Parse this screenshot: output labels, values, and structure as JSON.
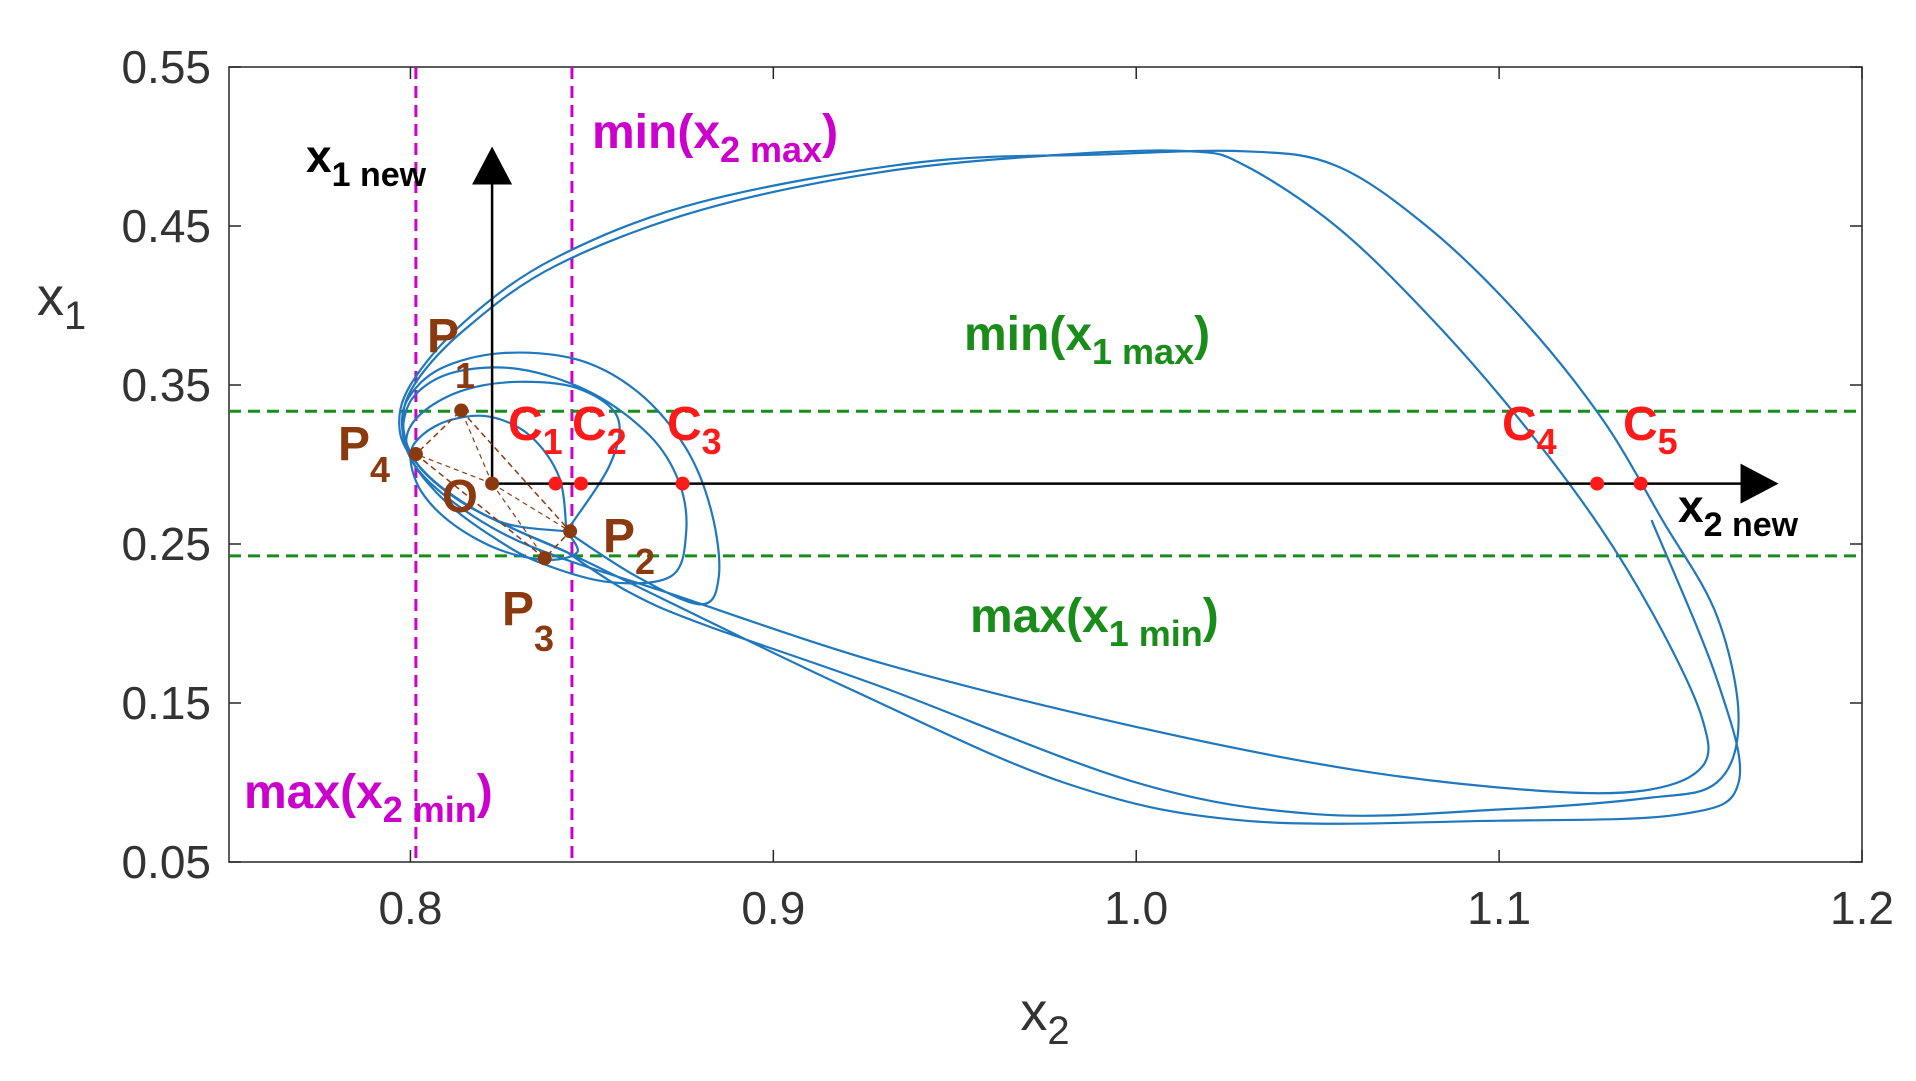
{
  "chart_data": {
    "type": "line",
    "title": "",
    "xlabel": {
      "main": "x",
      "sub": "2"
    },
    "ylabel": {
      "main": "x",
      "sub": "1"
    },
    "xlim": [
      0.75,
      1.2
    ],
    "ylim": [
      0.05,
      0.55
    ],
    "xticks": [
      0.8,
      0.9,
      1.0,
      1.1,
      1.2
    ],
    "xtick_labels": [
      "0.8",
      "0.9",
      "1.0",
      "1.1",
      "1.2"
    ],
    "yticks": [
      0.05,
      0.15,
      0.25,
      0.35,
      0.45,
      0.55
    ],
    "ytick_labels": [
      "0.05",
      "0.15",
      "0.25",
      "0.35",
      "0.45",
      "0.55"
    ],
    "colors": {
      "trajectory": "#1f77bd",
      "crossing": "#ff1a1a",
      "poincare": "#8b3a0f",
      "x2_limits": "#cc00cc",
      "x1_limits": "#1a8c1a",
      "new_axes": "#000000"
    },
    "trajectory_loops": [
      {
        "name": "loop-1",
        "points": [
          [
            0.843,
            0.258
          ],
          [
            0.841,
            0.292
          ],
          [
            0.833,
            0.318
          ],
          [
            0.822,
            0.33
          ],
          [
            0.811,
            0.328
          ],
          [
            0.803,
            0.318
          ],
          [
            0.8,
            0.305
          ],
          [
            0.803,
            0.283
          ],
          [
            0.812,
            0.262
          ],
          [
            0.825,
            0.246
          ],
          [
            0.838,
            0.24
          ],
          [
            0.846,
            0.245
          ],
          [
            0.843,
            0.258
          ]
        ]
      },
      {
        "name": "loop-2",
        "points": [
          [
            0.843,
            0.258
          ],
          [
            0.855,
            0.3
          ],
          [
            0.857,
            0.33
          ],
          [
            0.846,
            0.348
          ],
          [
            0.83,
            0.352
          ],
          [
            0.815,
            0.347
          ],
          [
            0.804,
            0.334
          ],
          [
            0.799,
            0.318
          ],
          [
            0.801,
            0.3
          ],
          [
            0.81,
            0.276
          ],
          [
            0.823,
            0.254
          ],
          [
            0.836,
            0.238
          ],
          [
            0.855,
            0.226
          ],
          [
            0.872,
            0.23
          ],
          [
            0.876,
            0.258
          ],
          [
            0.874,
            0.289
          ],
          [
            0.866,
            0.318
          ],
          [
            0.85,
            0.345
          ],
          [
            0.83,
            0.36
          ],
          [
            0.812,
            0.358
          ],
          [
            0.801,
            0.343
          ],
          [
            0.798,
            0.32
          ],
          [
            0.802,
            0.3
          ],
          [
            0.812,
            0.28
          ],
          [
            0.826,
            0.263
          ],
          [
            0.843,
            0.258
          ]
        ]
      },
      {
        "name": "loop-3",
        "points": [
          [
            0.843,
            0.258
          ],
          [
            0.862,
            0.23
          ],
          [
            0.88,
            0.212
          ],
          [
            0.885,
            0.23
          ],
          [
            0.883,
            0.27
          ],
          [
            0.876,
            0.31
          ],
          [
            0.863,
            0.345
          ],
          [
            0.846,
            0.366
          ],
          [
            0.825,
            0.37
          ],
          [
            0.808,
            0.36
          ],
          [
            0.799,
            0.34
          ],
          [
            0.798,
            0.318
          ],
          [
            0.802,
            0.297
          ],
          [
            0.812,
            0.276
          ],
          [
            0.826,
            0.256
          ],
          [
            0.843,
            0.24
          ],
          [
            0.87,
            0.22
          ],
          [
            0.93,
            0.175
          ],
          [
            1.0,
            0.135
          ],
          [
            1.06,
            0.108
          ],
          [
            1.11,
            0.095
          ],
          [
            1.14,
            0.095
          ],
          [
            1.156,
            0.11
          ],
          [
            1.156,
            0.14
          ],
          [
            1.145,
            0.195
          ],
          [
            1.128,
            0.26
          ],
          [
            1.105,
            0.33
          ],
          [
            1.08,
            0.395
          ],
          [
            1.055,
            0.45
          ],
          [
            1.03,
            0.488
          ],
          [
            1.015,
            0.497
          ],
          [
            0.98,
            0.495
          ],
          [
            0.93,
            0.484
          ],
          [
            0.88,
            0.46
          ],
          [
            0.84,
            0.425
          ],
          [
            0.815,
            0.385
          ],
          [
            0.801,
            0.35
          ],
          [
            0.798,
            0.325
          ],
          [
            0.802,
            0.3
          ],
          [
            0.813,
            0.278
          ],
          [
            0.828,
            0.26
          ],
          [
            0.843,
            0.245
          ]
        ]
      },
      {
        "name": "loop-4",
        "points": [
          [
            0.843,
            0.245
          ],
          [
            0.86,
            0.22
          ],
          [
            0.88,
            0.2
          ],
          [
            0.93,
            0.16
          ],
          [
            1.0,
            0.1
          ],
          [
            1.05,
            0.08
          ],
          [
            1.1,
            0.083
          ],
          [
            1.14,
            0.09
          ],
          [
            1.16,
            0.1
          ],
          [
            1.166,
            0.14
          ],
          [
            1.16,
            0.205
          ],
          [
            1.145,
            0.265
          ],
          [
            1.128,
            0.33
          ],
          [
            1.105,
            0.395
          ],
          [
            1.08,
            0.45
          ],
          [
            1.055,
            0.488
          ],
          [
            1.03,
            0.497
          ],
          [
            0.99,
            0.495
          ],
          [
            0.94,
            0.49
          ],
          [
            0.88,
            0.465
          ],
          [
            0.84,
            0.43
          ],
          [
            0.815,
            0.39
          ],
          [
            0.8,
            0.35
          ],
          [
            0.797,
            0.322
          ],
          [
            0.802,
            0.3
          ],
          [
            0.813,
            0.278
          ],
          [
            0.828,
            0.26
          ],
          [
            0.843,
            0.245
          ],
          [
            0.87,
            0.215
          ],
          [
            0.92,
            0.16
          ],
          [
            0.98,
            0.1
          ],
          [
            1.03,
            0.076
          ],
          [
            1.1,
            0.076
          ],
          [
            1.15,
            0.08
          ],
          [
            1.166,
            0.1
          ],
          [
            1.16,
            0.165
          ],
          [
            1.142,
            0.265
          ]
        ]
      }
    ],
    "x2_limit_lines": {
      "max_x2_min": 0.8015,
      "min_x2_max": 0.8445
    },
    "x1_limit_lines": {
      "min_x1_max": 0.3335,
      "max_x1_min": 0.2425
    },
    "origin_O": {
      "label": "O",
      "x2": 0.8225,
      "x1": 0.288
    },
    "new_axes": {
      "x1_new": {
        "main": "x",
        "sub": "1 new",
        "tip": [
          0.8225,
          0.5
        ]
      },
      "x2_new": {
        "main": "x",
        "sub": "2 new",
        "tip": [
          1.177,
          0.288
        ]
      }
    },
    "crossing_points": [
      {
        "label": "C",
        "sub": "1",
        "x2": 0.84,
        "x1": 0.288
      },
      {
        "label": "C",
        "sub": "2",
        "x2": 0.847,
        "x1": 0.288
      },
      {
        "label": "C",
        "sub": "3",
        "x2": 0.875,
        "x1": 0.288
      },
      {
        "label": "C",
        "sub": "4",
        "x2": 1.127,
        "x1": 0.288
      },
      {
        "label": "C",
        "sub": "5",
        "x2": 1.139,
        "x1": 0.288
      }
    ],
    "poincare_points": [
      {
        "label": "P",
        "sub": "1",
        "x2": 0.814,
        "x1": 0.334
      },
      {
        "label": "P",
        "sub": "2",
        "x2": 0.844,
        "x1": 0.258
      },
      {
        "label": "P",
        "sub": "3",
        "x2": 0.837,
        "x1": 0.241
      },
      {
        "label": "P",
        "sub": "4",
        "x2": 0.8015,
        "x1": 0.3065
      }
    ],
    "annotations": {
      "min_x2_max": {
        "pre": "min(x",
        "sub": "2 max",
        "post": ")"
      },
      "max_x2_min": {
        "pre": "max(x",
        "sub": "2 min",
        "post": ")"
      },
      "min_x1_max": {
        "pre": "min(x",
        "sub": "1 max",
        "post": ")"
      },
      "max_x1_min": {
        "pre": "max(x",
        "sub": "1 min",
        "post": ")"
      }
    }
  }
}
